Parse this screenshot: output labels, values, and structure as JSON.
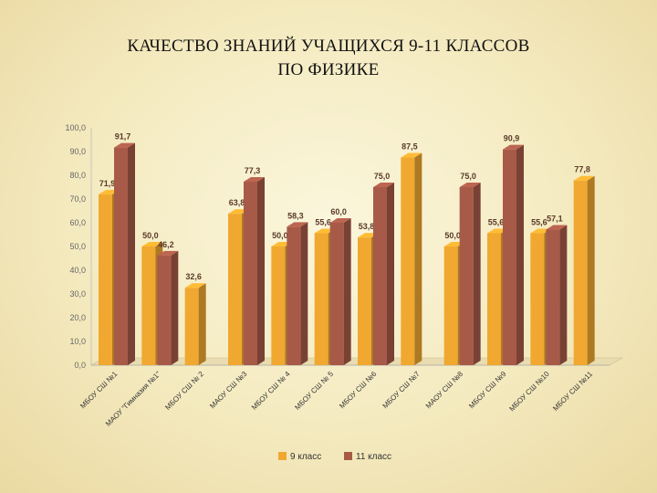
{
  "slide": {
    "title_line1": "КАЧЕСТВО ЗНАНИЙ УЧАЩИХСЯ 9-11 КЛАССОВ",
    "title_line2": "ПО ФИЗИКЕ"
  },
  "chart_data": {
    "type": "bar",
    "title": "КАЧЕСТВО ЗНАНИЙ УЧАЩИХСЯ 9-11 КЛАССОВ ПО ФИЗИКЕ",
    "xlabel": "",
    "ylabel": "",
    "ylim": [
      0,
      100
    ],
    "yticks": [
      "0,0",
      "10,0",
      "20,0",
      "30,0",
      "40,0",
      "50,0",
      "60,0",
      "70,0",
      "80,0",
      "90,0",
      "100,0"
    ],
    "categories": [
      "МБОУ СШ №1",
      "МАОУ \"Гимназия №1\"",
      "МБОУ СШ № 2",
      "МАОУ СШ №3",
      "МБОУ СШ № 4",
      "МБОУ СШ № 5",
      "МБОУ СШ №6",
      "МБОУ СШ №7",
      "МАОУ СШ №8",
      "МБОУ СШ №9",
      "МБОУ СШ №10",
      "МБОУ СШ №11"
    ],
    "series": [
      {
        "name": "9 класс",
        "color": "#f0a830",
        "values": [
          71.9,
          50.0,
          32.6,
          63.8,
          50.0,
          55.6,
          53.8,
          87.5,
          50.0,
          55.6,
          55.6,
          77.8
        ],
        "labels": [
          "71,9",
          "50,0",
          "32,6",
          "63,8",
          "50,0",
          "55,6",
          "53,8",
          "87,5",
          "50,0",
          "55,6",
          "55,6",
          "77,8"
        ]
      },
      {
        "name": "11 класс",
        "color": "#a85a48",
        "values": [
          91.7,
          46.2,
          null,
          77.3,
          58.3,
          60.0,
          75.0,
          null,
          75.0,
          90.9,
          57.1,
          null
        ],
        "labels": [
          "91,7",
          "46,2",
          "",
          "77,3",
          "58,3",
          "60,0",
          "75,0",
          "",
          "75,0",
          "90,9",
          "57,1",
          ""
        ]
      }
    ],
    "grid": false,
    "legend_position": "bottom"
  }
}
